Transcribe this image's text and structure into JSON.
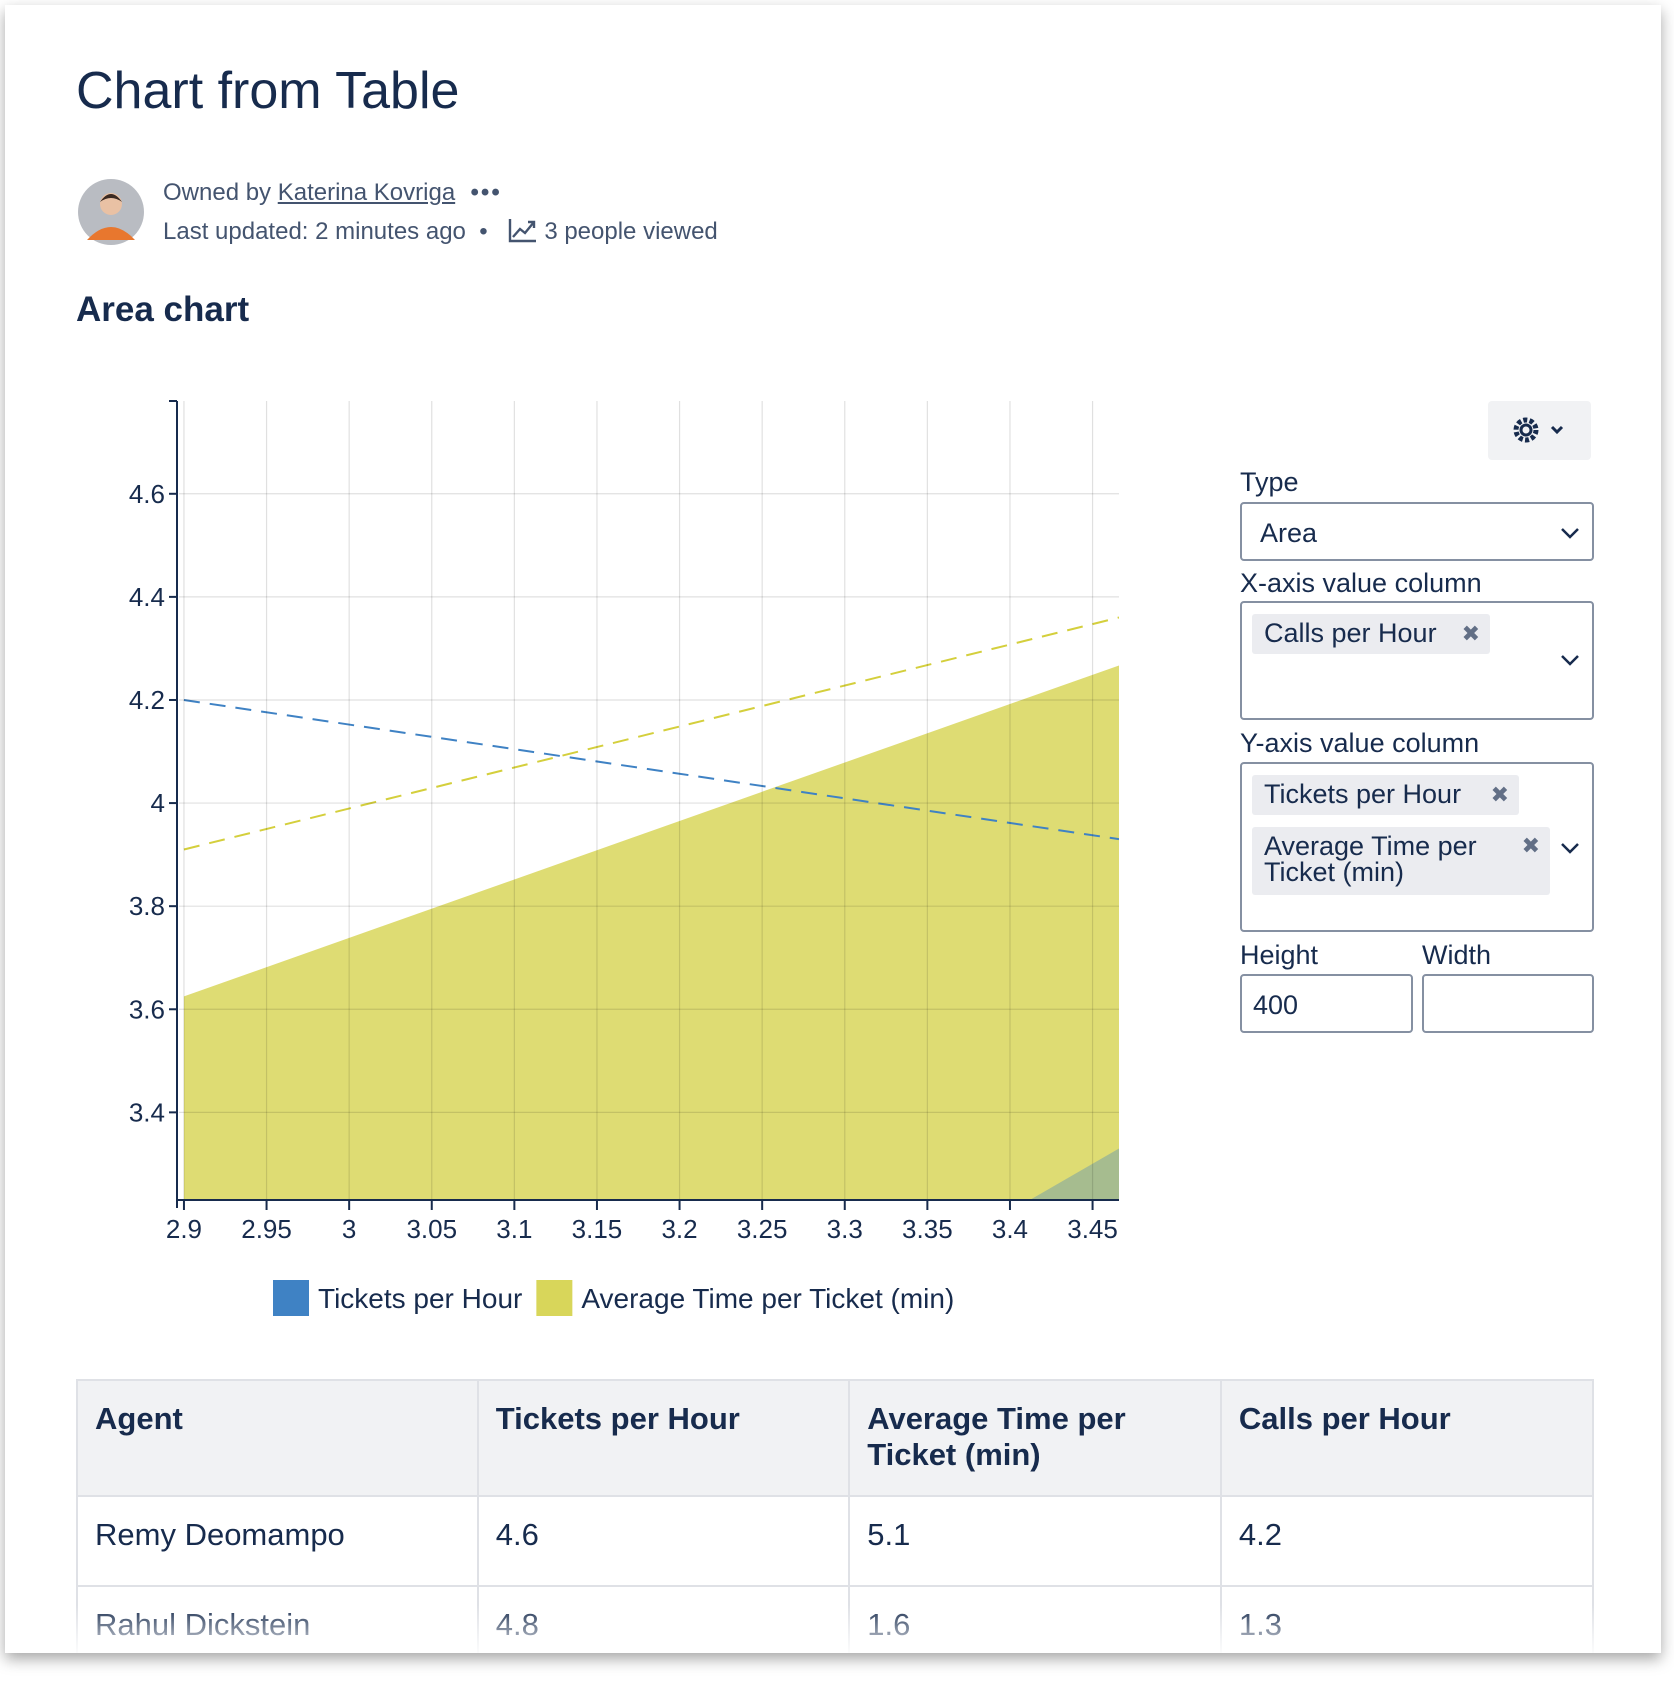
{
  "header": {
    "title": "Chart from Table",
    "owned_by": "Owned by",
    "owner": "Katerina Kovriga",
    "last_updated": "Last updated: 2 minutes ago",
    "viewed": "3 people viewed"
  },
  "chart_data": {
    "type": "area",
    "title": "Area chart",
    "series": [
      {
        "name": "Tickets per Hour",
        "color": "#3f82c4",
        "x": [
          3.412,
          3.466
        ],
        "values": [
          3.23,
          3.33
        ]
      },
      {
        "name": "Average Time per Ticket (min)",
        "color": "#d8d65a",
        "x": [
          2.9,
          3.466
        ],
        "values": [
          3.625,
          4.267
        ]
      }
    ],
    "trendlines": [
      {
        "color": "#3f82c4",
        "x": [
          2.9,
          3.466
        ],
        "values": [
          4.2,
          3.93
        ]
      },
      {
        "color": "#d4cf3c",
        "x": [
          2.9,
          3.466
        ],
        "values": [
          3.91,
          4.36
        ]
      }
    ],
    "xlim": [
      2.897,
      3.466
    ],
    "xticks": [
      2.9,
      2.95,
      3,
      3.05,
      3.1,
      3.15,
      3.2,
      3.25,
      3.3,
      3.35,
      3.4,
      3.45
    ],
    "ylim": [
      3.23,
      4.78
    ],
    "yticks": [
      3.4,
      3.6,
      3.8,
      4,
      4.2,
      4.4,
      4.6
    ],
    "grid": true,
    "legend": "bottom"
  },
  "panel": {
    "type_label": "Type",
    "type_value": "Area",
    "x_label": "X-axis value column",
    "x_chips": [
      "Calls per Hour"
    ],
    "y_label": "Y-axis value column",
    "y_chips": [
      "Tickets per Hour",
      "Average Time per Ticket (min)"
    ],
    "height_label": "Height",
    "height_value": 400,
    "width_label": "Width"
  },
  "table": {
    "header": [
      "Agent",
      "Tickets per Hour",
      "Average Time per Ticket (min)",
      "Calls per Hour"
    ],
    "rows": [
      [
        "Remy Deomampo",
        4.6,
        5.1,
        4.2
      ],
      [
        "Rahul Dickstein",
        4.8,
        1.6,
        1.3
      ]
    ]
  }
}
